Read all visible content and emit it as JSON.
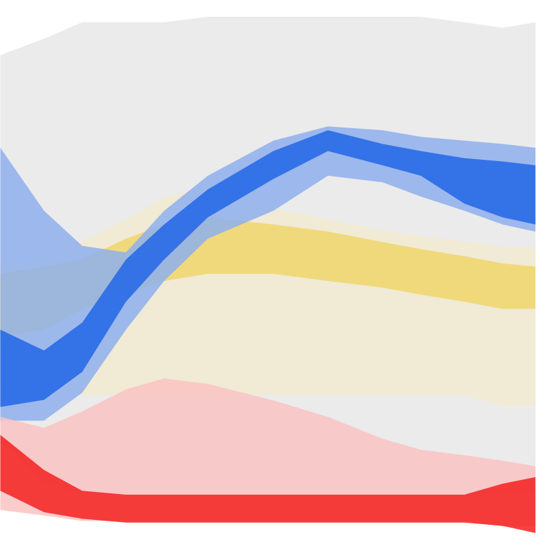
{
  "chart_data": {
    "type": "band",
    "tick_labels": false,
    "xlim": [
      0,
      100
    ],
    "ylim": [
      0,
      100
    ],
    "x": [
      0,
      8,
      15,
      23,
      30,
      38,
      50,
      60,
      70,
      77,
      85,
      92,
      98
    ],
    "series": [
      {
        "color": "#e8e8e8",
        "lower": [
          20,
          12,
          10,
          10,
          10,
          10,
          10,
          10,
          10,
          10,
          10,
          10,
          10
        ],
        "upper": [
          90,
          93,
          96,
          96,
          96,
          97,
          97,
          97,
          97,
          97,
          96,
          95,
          96
        ]
      },
      {
        "color": "#f3ead0",
        "lower": [
          30,
          28,
          28,
          28,
          28,
          28,
          28,
          28,
          28,
          28,
          28,
          26,
          26
        ],
        "upper": [
          52,
          53,
          56,
          60,
          64,
          66,
          62,
          60,
          58,
          57,
          56,
          55,
          55
        ]
      },
      {
        "color": "#f0d66a",
        "lower": [
          38.6,
          39.9,
          43.7,
          46.3,
          48.8,
          50.1,
          50.1,
          48.8,
          47.6,
          46.3,
          45.0,
          43.7,
          43.7
        ],
        "upper": [
          50.1,
          51.4,
          52.7,
          56.5,
          59.1,
          60.4,
          59.1,
          57.8,
          55.9,
          54.6,
          53.3,
          52.0,
          51.4
        ]
      },
      {
        "color": "#8fb0ee",
        "lower": [
          23.3,
          23.3,
          28.4,
          39.9,
          48.8,
          56.5,
          61.6,
          68.0,
          66.8,
          64.2,
          61.6,
          59.1,
          57.8
        ],
        "upper": [
          73.1,
          61.6,
          55.2,
          54.0,
          61.6,
          68.0,
          74.4,
          77.0,
          76.3,
          75.1,
          74.4,
          73.8,
          73.1
        ]
      },
      {
        "color": "#2266e8",
        "lower": [
          25.8,
          27.1,
          32.2,
          45.0,
          52.7,
          60.4,
          67.4,
          72.5,
          69.9,
          68.0,
          62.9,
          60.4,
          59.1
        ],
        "upper": [
          39.9,
          36.1,
          41.2,
          52.7,
          59.1,
          65.5,
          72.5,
          76.3,
          73.8,
          72.5,
          71.2,
          70.6,
          69.9
        ]
      },
      {
        "color": "#fbc4c4",
        "lower": [
          7,
          6,
          5,
          5,
          5,
          5,
          5,
          5,
          5,
          5,
          5,
          4,
          4
        ],
        "upper": [
          24,
          22,
          25,
          29,
          31,
          30,
          27,
          24,
          20,
          18,
          17,
          16,
          15
        ]
      },
      {
        "color": "#f52020",
        "lower": [
          10.5,
          6.6,
          5.4,
          4.7,
          4.7,
          4.7,
          4.7,
          4.7,
          4.7,
          4.7,
          4.7,
          4.1,
          2.8
        ],
        "upper": [
          20.7,
          14.3,
          10.5,
          9.8,
          9.8,
          9.8,
          9.8,
          9.8,
          9.8,
          9.8,
          9.8,
          11.8,
          13.0
        ]
      }
    ]
  }
}
